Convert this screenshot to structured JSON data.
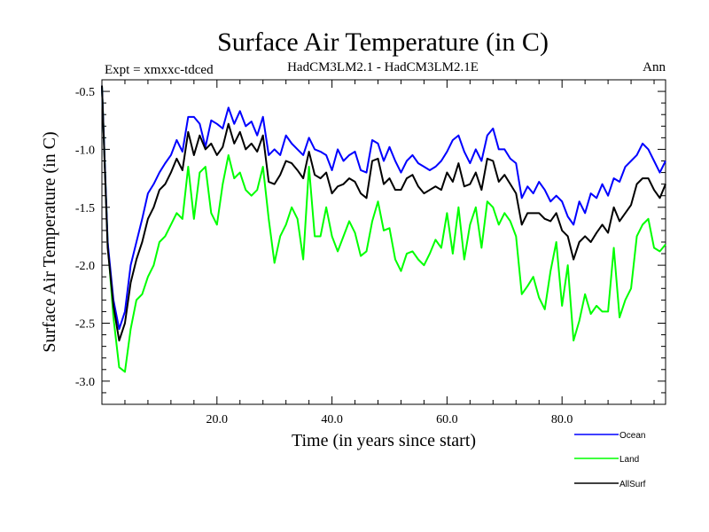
{
  "chart_data": {
    "type": "line",
    "title": "Surface Air Temperature (in C)",
    "left_label": "Expt = xmxxc-tdced",
    "center_label": "HadCM3LM2.1 - HadCM3LM2.1E",
    "right_label": "Ann",
    "xlabel": "Time (in years since start)",
    "ylabel": "Surface Air Temperature (in C)",
    "xlim": [
      0.0,
      98.0
    ],
    "ylim": [
      -3.2,
      -0.4
    ],
    "xticks": [
      20,
      40,
      60,
      80
    ],
    "xtick_labels": [
      "20.0",
      "40.0",
      "60.0",
      "80.0"
    ],
    "yticks": [
      -0.5,
      -1.0,
      -1.5,
      -2.0,
      -2.5,
      -3.0
    ],
    "ytick_labels": [
      "-0.5",
      "-1.0",
      "-1.5",
      "-2.0",
      "-2.5",
      "-3.0"
    ],
    "grid": false,
    "legend_position": "bottom-right, below plot",
    "x": [
      0,
      1,
      2,
      3,
      4,
      5,
      6,
      7,
      8,
      9,
      10,
      11,
      12,
      13,
      14,
      15,
      16,
      17,
      18,
      19,
      20,
      21,
      22,
      23,
      24,
      25,
      26,
      27,
      28,
      29,
      30,
      31,
      32,
      33,
      34,
      35,
      36,
      37,
      38,
      39,
      40,
      41,
      42,
      43,
      44,
      45,
      46,
      47,
      48,
      49,
      50,
      51,
      52,
      53,
      54,
      55,
      56,
      57,
      58,
      59,
      60,
      61,
      62,
      63,
      64,
      65,
      66,
      67,
      68,
      69,
      70,
      71,
      72,
      73,
      74,
      75,
      76,
      77,
      78,
      79,
      80,
      81,
      82,
      83,
      84,
      85,
      86,
      87,
      88,
      89,
      90,
      91,
      92,
      93,
      94,
      95,
      96,
      97,
      98
    ],
    "series": [
      {
        "name": "Ocean",
        "color": "#0000ff",
        "values": [
          -0.45,
          -1.8,
          -2.3,
          -2.55,
          -2.4,
          -2.0,
          -1.8,
          -1.6,
          -1.38,
          -1.3,
          -1.2,
          -1.12,
          -1.05,
          -0.92,
          -1.02,
          -0.72,
          -0.72,
          -0.78,
          -0.98,
          -0.75,
          -0.78,
          -0.82,
          -0.64,
          -0.78,
          -0.67,
          -0.8,
          -0.76,
          -0.88,
          -0.72,
          -1.05,
          -1.0,
          -1.05,
          -0.88,
          -0.95,
          -1.0,
          -1.05,
          -0.9,
          -1.0,
          -1.02,
          -1.05,
          -1.18,
          -1.0,
          -1.1,
          -1.05,
          -1.02,
          -1.18,
          -1.2,
          -0.92,
          -0.95,
          -1.1,
          -0.98,
          -1.1,
          -1.2,
          -1.1,
          -1.05,
          -1.12,
          -1.15,
          -1.18,
          -1.15,
          -1.1,
          -1.02,
          -0.92,
          -0.88,
          -1.02,
          -1.12,
          -1.0,
          -1.1,
          -0.88,
          -0.82,
          -1.0,
          -1.0,
          -1.08,
          -1.12,
          -1.42,
          -1.32,
          -1.38,
          -1.28,
          -1.35,
          -1.45,
          -1.4,
          -1.45,
          -1.58,
          -1.65,
          -1.45,
          -1.55,
          -1.38,
          -1.42,
          -1.3,
          -1.4,
          -1.25,
          -1.28,
          -1.15,
          -1.1,
          -1.05,
          -0.95,
          -1.0,
          -1.1,
          -1.2,
          -1.1
        ]
      },
      {
        "name": "Land",
        "color": "#00ff00",
        "values": [
          -0.45,
          -1.8,
          -2.45,
          -2.88,
          -2.92,
          -2.55,
          -2.3,
          -2.25,
          -2.1,
          -2.0,
          -1.8,
          -1.75,
          -1.65,
          -1.55,
          -1.6,
          -1.15,
          -1.6,
          -1.2,
          -1.15,
          -1.55,
          -1.65,
          -1.3,
          -1.05,
          -1.25,
          -1.2,
          -1.35,
          -1.4,
          -1.35,
          -1.15,
          -1.6,
          -1.98,
          -1.75,
          -1.65,
          -1.5,
          -1.6,
          -1.95,
          -1.15,
          -1.75,
          -1.75,
          -1.5,
          -1.75,
          -1.88,
          -1.75,
          -1.62,
          -1.72,
          -1.92,
          -1.88,
          -1.62,
          -1.45,
          -1.7,
          -1.68,
          -1.95,
          -2.05,
          -1.9,
          -1.88,
          -1.95,
          -2.0,
          -1.9,
          -1.78,
          -1.85,
          -1.55,
          -1.9,
          -1.5,
          -1.95,
          -1.65,
          -1.5,
          -1.85,
          -1.45,
          -1.5,
          -1.65,
          -1.55,
          -1.62,
          -1.75,
          -2.25,
          -2.18,
          -2.1,
          -2.28,
          -2.38,
          -2.05,
          -1.8,
          -2.35,
          -2.0,
          -2.65,
          -2.48,
          -2.25,
          -2.42,
          -2.35,
          -2.4,
          -2.4,
          -1.85,
          -2.45,
          -2.3,
          -2.2,
          -1.75,
          -1.65,
          -1.6,
          -1.85,
          -1.88,
          -1.82
        ]
      },
      {
        "name": "AllSurf",
        "color": "#000000",
        "values": [
          -0.45,
          -1.85,
          -2.35,
          -2.65,
          -2.5,
          -2.15,
          -1.95,
          -1.8,
          -1.6,
          -1.5,
          -1.35,
          -1.3,
          -1.2,
          -1.08,
          -1.18,
          -0.85,
          -1.05,
          -0.88,
          -1.0,
          -0.95,
          -1.05,
          -0.98,
          -0.78,
          -0.95,
          -0.85,
          -1.0,
          -0.95,
          -1.02,
          -0.88,
          -1.28,
          -1.3,
          -1.22,
          -1.1,
          -1.12,
          -1.18,
          -1.25,
          -1.02,
          -1.22,
          -1.25,
          -1.2,
          -1.38,
          -1.32,
          -1.3,
          -1.25,
          -1.28,
          -1.38,
          -1.42,
          -1.1,
          -1.08,
          -1.3,
          -1.25,
          -1.35,
          -1.35,
          -1.25,
          -1.22,
          -1.32,
          -1.38,
          -1.35,
          -1.32,
          -1.35,
          -1.2,
          -1.28,
          -1.12,
          -1.32,
          -1.3,
          -1.2,
          -1.35,
          -1.08,
          -1.1,
          -1.28,
          -1.22,
          -1.3,
          -1.38,
          -1.65,
          -1.55,
          -1.55,
          -1.55,
          -1.6,
          -1.62,
          -1.55,
          -1.7,
          -1.75,
          -1.95,
          -1.8,
          -1.75,
          -1.8,
          -1.72,
          -1.65,
          -1.72,
          -1.5,
          -1.62,
          -1.55,
          -1.48,
          -1.3,
          -1.25,
          -1.25,
          -1.35,
          -1.42,
          -1.3
        ]
      }
    ]
  }
}
